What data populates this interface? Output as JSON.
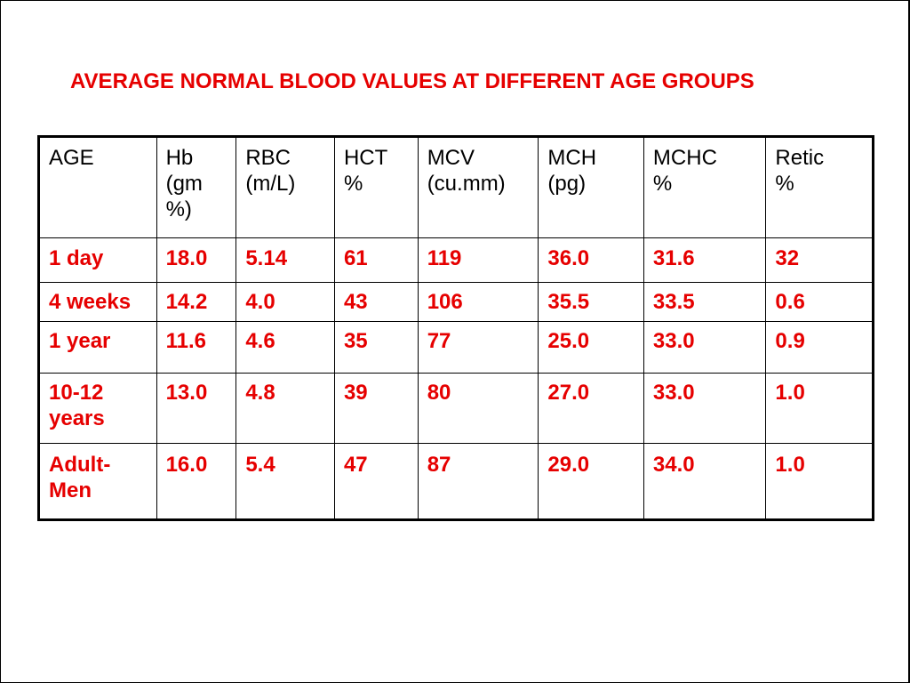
{
  "title": "AVERAGE NORMAL BLOOD VALUES AT DIFFERENT AGE GROUPS",
  "colors": {
    "title": "#e60000",
    "header_text": "#000000",
    "body_text": "#e60000",
    "border": "#000000"
  },
  "table": {
    "headers": [
      [
        "AGE"
      ],
      [
        "Hb",
        "(gm",
        "%)"
      ],
      [
        "RBC",
        "(m/L)"
      ],
      [
        "HCT",
        "%"
      ],
      [
        "MCV",
        "(cu.mm)"
      ],
      [
        "MCH",
        "(pg)"
      ],
      [
        "MCHC",
        "%"
      ],
      [
        "Retic",
        "%"
      ]
    ],
    "rows": [
      [
        [
          "1 day"
        ],
        [
          "18.0"
        ],
        [
          "5.14"
        ],
        [
          "61"
        ],
        [
          "119"
        ],
        [
          "36.0"
        ],
        [
          "31.6"
        ],
        [
          "32"
        ]
      ],
      [
        [
          "4 weeks"
        ],
        [
          "14.2"
        ],
        [
          "4.0"
        ],
        [
          "43"
        ],
        [
          "106"
        ],
        [
          "35.5"
        ],
        [
          "33.5"
        ],
        [
          "0.6"
        ]
      ],
      [
        [
          "1 year"
        ],
        [
          "11.6"
        ],
        [
          "4.6"
        ],
        [
          "35"
        ],
        [
          "77"
        ],
        [
          "25.0"
        ],
        [
          "33.0"
        ],
        [
          "0.9"
        ]
      ],
      [
        [
          "10-12",
          "years"
        ],
        [
          "13.0"
        ],
        [
          "4.8"
        ],
        [
          "39"
        ],
        [
          "80"
        ],
        [
          "27.0"
        ],
        [
          "33.0"
        ],
        [
          "1.0"
        ]
      ],
      [
        [
          "Adult-",
          "Men"
        ],
        [
          "16.0"
        ],
        [
          "5.4"
        ],
        [
          "47"
        ],
        [
          "87"
        ],
        [
          "29.0"
        ],
        [
          "34.0"
        ],
        [
          "1.0"
        ]
      ]
    ]
  }
}
